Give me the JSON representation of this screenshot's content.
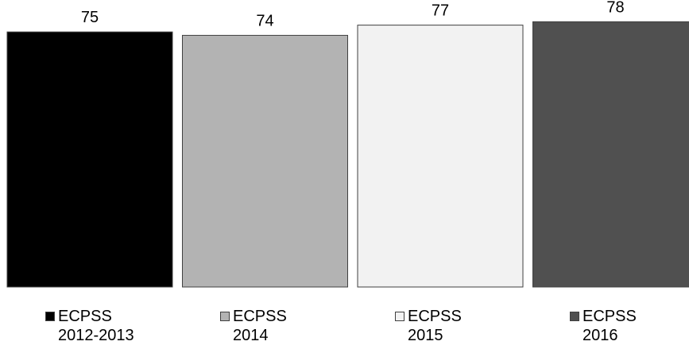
{
  "chart_data": {
    "type": "bar",
    "categories": [
      [
        "ECPSS",
        "2012-2013"
      ],
      [
        "ECPSS",
        "2014"
      ],
      [
        "ECPSS",
        "2015"
      ],
      [
        "ECPSS",
        "2016"
      ]
    ],
    "values": [
      75,
      74,
      77,
      78
    ],
    "data_labels": [
      "75",
      "74",
      "77",
      "78"
    ],
    "colors": [
      "#000000",
      "#b3b3b3",
      "#f2f2f2",
      "#505050"
    ],
    "ylim": [
      0,
      80
    ],
    "grid": false,
    "axes_visible": false,
    "legend_position": "bottom",
    "title": "",
    "xlabel": "",
    "ylabel": ""
  }
}
